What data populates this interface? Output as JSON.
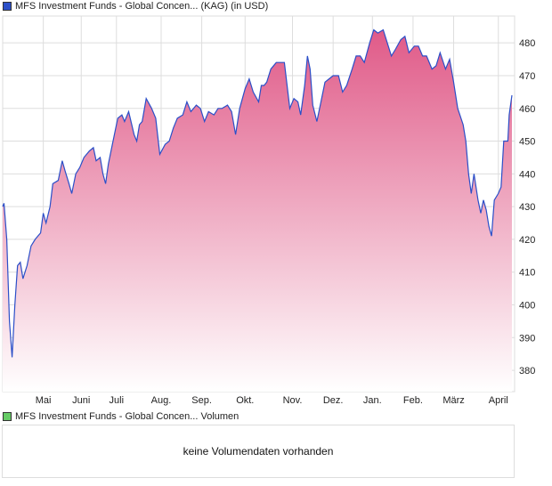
{
  "legend_main": "MFS Investment Funds - Global Concen... (KAG) (in USD)",
  "legend_volume": "MFS Investment Funds - Global Concen... Volumen",
  "volume_message": "keine Volumendaten vorhanden",
  "colors": {
    "line": "#2b4fc8",
    "fill_top": "#e05a88",
    "fill_bottom": "#ffffff",
    "grid": "#dddddd",
    "volume_swatch": "#66cc66",
    "main_swatch": "#2b4fc8"
  },
  "chart_data": {
    "type": "area",
    "title": "MFS Investment Funds - Global Concen... (KAG) (in USD)",
    "xlabel": "",
    "ylabel": "",
    "ylim": [
      373.5,
      488.2
    ],
    "xlim": [
      0,
      378
    ],
    "yticks": [
      380,
      390,
      400,
      410,
      420,
      430,
      440,
      450,
      460,
      470,
      480
    ],
    "xticks": [
      {
        "label": "Mai",
        "x": 30
      },
      {
        "label": "Juni",
        "x": 58
      },
      {
        "label": "Juli",
        "x": 84
      },
      {
        "label": "Aug.",
        "x": 117
      },
      {
        "label": "Sep.",
        "x": 147
      },
      {
        "label": "Okt.",
        "x": 179
      },
      {
        "label": "Nov.",
        "x": 214
      },
      {
        "label": "Dez.",
        "x": 244
      },
      {
        "label": "Jan.",
        "x": 273
      },
      {
        "label": "Feb.",
        "x": 303
      },
      {
        "label": "März",
        "x": 333
      },
      {
        "label": "April",
        "x": 366
      }
    ],
    "series": [
      {
        "name": "MFS Investment Funds - Global Concen... (KAG)",
        "points": [
          [
            0,
            430
          ],
          [
            1,
            431
          ],
          [
            3,
            420
          ],
          [
            5,
            395
          ],
          [
            7,
            384
          ],
          [
            9,
            400
          ],
          [
            11,
            412
          ],
          [
            13,
            413
          ],
          [
            15,
            408
          ],
          [
            18,
            412
          ],
          [
            21,
            418
          ],
          [
            24,
            420
          ],
          [
            28,
            422
          ],
          [
            30,
            428
          ],
          [
            32,
            425
          ],
          [
            35,
            430
          ],
          [
            37,
            437
          ],
          [
            41,
            438
          ],
          [
            44,
            444
          ],
          [
            46,
            441
          ],
          [
            49,
            437
          ],
          [
            51,
            434
          ],
          [
            54,
            440
          ],
          [
            57,
            442
          ],
          [
            60,
            445
          ],
          [
            64,
            447
          ],
          [
            67,
            448
          ],
          [
            69,
            444
          ],
          [
            72,
            445
          ],
          [
            74,
            440
          ],
          [
            76,
            437
          ],
          [
            78,
            443
          ],
          [
            81,
            449
          ],
          [
            85,
            457
          ],
          [
            88,
            458
          ],
          [
            90,
            456
          ],
          [
            93,
            459
          ],
          [
            97,
            452
          ],
          [
            99,
            450
          ],
          [
            101,
            455
          ],
          [
            103,
            456
          ],
          [
            106,
            463
          ],
          [
            110,
            460
          ],
          [
            113,
            457
          ],
          [
            116,
            446
          ],
          [
            120,
            449
          ],
          [
            123,
            450
          ],
          [
            126,
            454
          ],
          [
            129,
            457
          ],
          [
            133,
            458
          ],
          [
            136,
            462
          ],
          [
            139,
            459
          ],
          [
            143,
            461
          ],
          [
            146,
            460
          ],
          [
            149,
            456
          ],
          [
            152,
            459
          ],
          [
            156,
            458
          ],
          [
            159,
            460
          ],
          [
            162,
            460
          ],
          [
            166,
            461
          ],
          [
            169,
            459
          ],
          [
            172,
            452
          ],
          [
            175,
            460
          ],
          [
            179,
            466
          ],
          [
            182,
            469
          ],
          [
            185,
            465
          ],
          [
            189,
            462
          ],
          [
            191,
            467
          ],
          [
            193,
            467
          ],
          [
            195,
            468
          ],
          [
            198,
            472
          ],
          [
            202,
            474
          ],
          [
            205,
            474
          ],
          [
            208,
            474
          ],
          [
            212,
            460
          ],
          [
            215,
            463
          ],
          [
            218,
            462
          ],
          [
            220,
            458
          ],
          [
            223,
            467
          ],
          [
            225,
            476
          ],
          [
            227,
            472
          ],
          [
            229,
            461
          ],
          [
            232,
            456
          ],
          [
            235,
            462
          ],
          [
            238,
            468
          ],
          [
            241,
            469
          ],
          [
            244,
            470
          ],
          [
            248,
            470
          ],
          [
            251,
            465
          ],
          [
            254,
            467
          ],
          [
            258,
            472
          ],
          [
            261,
            476
          ],
          [
            264,
            476
          ],
          [
            267,
            474
          ],
          [
            271,
            480
          ],
          [
            274,
            484
          ],
          [
            277,
            483
          ],
          [
            281,
            484
          ],
          [
            284,
            480
          ],
          [
            287,
            476
          ],
          [
            290,
            478
          ],
          [
            294,
            481
          ],
          [
            297,
            482
          ],
          [
            300,
            477
          ],
          [
            304,
            479
          ],
          [
            307,
            479
          ],
          [
            310,
            476
          ],
          [
            313,
            476
          ],
          [
            317,
            472
          ],
          [
            320,
            473
          ],
          [
            323,
            477
          ],
          [
            327,
            472
          ],
          [
            330,
            475
          ],
          [
            333,
            468
          ],
          [
            336,
            460
          ],
          [
            340,
            455
          ],
          [
            342,
            450
          ],
          [
            344,
            440
          ],
          [
            346,
            434
          ],
          [
            348,
            440
          ],
          [
            351,
            432
          ],
          [
            353,
            428
          ],
          [
            355,
            432
          ],
          [
            357,
            429
          ],
          [
            359,
            424
          ],
          [
            361,
            421
          ],
          [
            363,
            432
          ],
          [
            366,
            434
          ],
          [
            368,
            436
          ],
          [
            370,
            450
          ],
          [
            373,
            450
          ],
          [
            374,
            458
          ],
          [
            376,
            464
          ]
        ]
      }
    ]
  }
}
